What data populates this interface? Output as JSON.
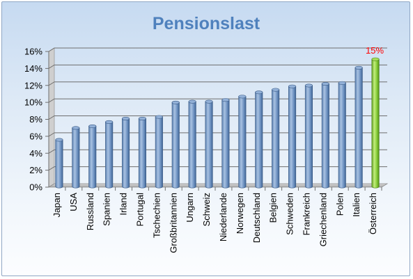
{
  "chart_data": {
    "type": "bar",
    "title": "Pensionslast",
    "categories": [
      "Japan",
      "USA",
      "Russland",
      "Spanien",
      "Irland",
      "Portugal",
      "Tschechien",
      "Großbritannien",
      "Ungarn",
      "Schweiz",
      "Niederlande",
      "Norwegen",
      "Deutschland",
      "Belgien",
      "Schweden",
      "Frankreich",
      "Griechenland",
      "Polen",
      "Italien",
      "Österreich"
    ],
    "values": [
      5.5,
      6.9,
      7.1,
      7.6,
      8.0,
      8.0,
      8.2,
      9.9,
      10.0,
      10.0,
      10.2,
      10.6,
      11.1,
      11.4,
      11.8,
      11.9,
      12.1,
      12.2,
      14.0,
      15.0
    ],
    "ylim": [
      0,
      16
    ],
    "yticks": [
      "0%",
      "2%",
      "4%",
      "6%",
      "8%",
      "10%",
      "12%",
      "14%",
      "16%"
    ],
    "grid": true,
    "legend": "none",
    "highlight_index": 19,
    "data_labels": [
      {
        "index": 19,
        "text": "15%"
      }
    ],
    "colors": {
      "bar": "#4f81bd",
      "highlight": "#7cc233",
      "title": "#4f81bd",
      "label": "#ff0000"
    }
  }
}
